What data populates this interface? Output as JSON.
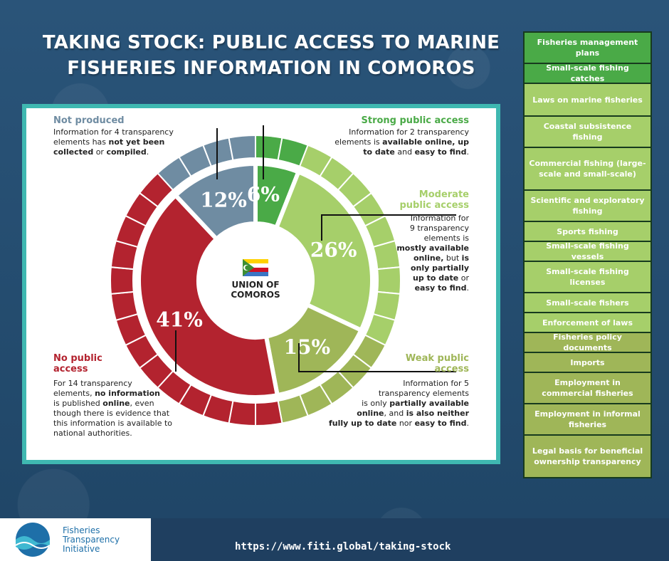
{
  "title_line1": "TAKING STOCK: PUBLIC ACCESS TO MARINE",
  "title_line2": "FISHERIES INFORMATION IN COMOROS",
  "center_label_1": "UNION OF",
  "center_label_2": "COMOROS",
  "chart_data": {
    "type": "pie",
    "subtype": "donut",
    "categories": [
      "Strong public access",
      "Moderate public access",
      "Weak public access",
      "No public access",
      "Not produced"
    ],
    "values": [
      6,
      26,
      15,
      41,
      12
    ],
    "value_labels": [
      "6%",
      "26%",
      "15%",
      "41%",
      "12%"
    ],
    "element_counts": [
      2,
      9,
      5,
      14,
      4
    ],
    "colors": [
      "#4aaa47",
      "#a6cf6a",
      "#9fb658",
      "#b3232f",
      "#6f8ca2"
    ]
  },
  "labels": {
    "strong": {
      "heading": "Strong public access",
      "t1": "Information for 2 transparency",
      "t2": "elements is ",
      "t2b": "available online, up",
      "t3b": "to date",
      "t3": " and ",
      "t3c": "easy to find",
      "t3d": "."
    },
    "moderate": {
      "heading1": "Moderate",
      "heading2": "public access",
      "t1": "Information for",
      "t2": "9 transparency",
      "t3": "elements is",
      "t4b": "mostly available",
      "t5b": "online,",
      "t5": " but ",
      "t5c": "is",
      "t6b": "only partially",
      "t7b": "up to date",
      "t7": " or",
      "t8b": "easy to find",
      "t8": "."
    },
    "weak": {
      "heading1": "Weak public",
      "heading2": "access",
      "t1": "Information for 5",
      "t2": "transparency elements",
      "t3": "is only ",
      "t3b": "partially available",
      "t4b": "online",
      "t4": ", and ",
      "t4c": "is also neither",
      "t5b": "fully up to date",
      "t5": " nor ",
      "t5c": "easy to find",
      "t5d": "."
    },
    "none": {
      "heading1": "No public",
      "heading2": "access",
      "t1": "For 14 transparency",
      "t2": "elements, ",
      "t2b": "no information",
      "t3": "is published ",
      "t3b": "online",
      "t3c": ", even",
      "t4": "though there is evidence that",
      "t5": "this information is available to",
      "t6": "national authorities."
    },
    "notproduced": {
      "heading": "Not produced",
      "t1": "Information for 4 transparency",
      "t2": "elements has ",
      "t2b": "not yet been",
      "t3b": "collected",
      "t3": " or ",
      "t3c": "compiled",
      "t3d": "."
    }
  },
  "legend_items": [
    {
      "label": "Fisheries management plans",
      "color": "#4aaa47"
    },
    {
      "label": "Small-scale fishing catches",
      "color": "#4aaa47"
    },
    {
      "label": "Laws on marine fisheries",
      "color": "#a6cf6a"
    },
    {
      "label": "Coastal subsistence fishing",
      "color": "#a6cf6a"
    },
    {
      "label": "Commercial fishing (large-scale and small-scale)",
      "color": "#a6cf6a"
    },
    {
      "label": "Scientific and exploratory fishing",
      "color": "#a6cf6a"
    },
    {
      "label": "Sports fishing",
      "color": "#a6cf6a"
    },
    {
      "label": "Small-scale fishing vessels",
      "color": "#a6cf6a"
    },
    {
      "label": "Small-scale fishing licenses",
      "color": "#a6cf6a"
    },
    {
      "label": "Small-scale fishers",
      "color": "#a6cf6a"
    },
    {
      "label": "Enforcement of laws",
      "color": "#a6cf6a"
    },
    {
      "label": "Fisheries policy documents",
      "color": "#9fb658"
    },
    {
      "label": "Imports",
      "color": "#9fb658"
    },
    {
      "label": "Employment in commercial fisheries",
      "color": "#9fb658"
    },
    {
      "label": "Employment in informal fisheries",
      "color": "#9fb658"
    },
    {
      "label": "Legal basis for beneficial ownership transparency",
      "color": "#9fb658"
    }
  ],
  "logo_line1": "Fisheries",
  "logo_line2": "Transparency",
  "logo_line3": "Initiative",
  "url": "https://www.fiti.global/taking-stock"
}
